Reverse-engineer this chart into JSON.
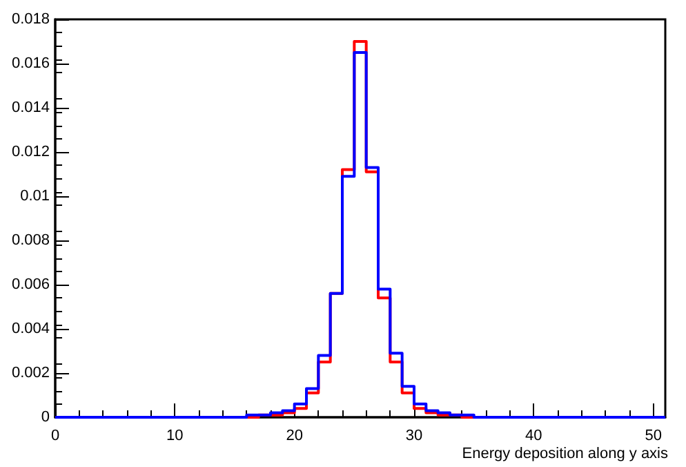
{
  "chart_data": {
    "type": "histogram",
    "xlabel": "Energy deposition along y axis",
    "bins": [
      0,
      1,
      2,
      3,
      4,
      5,
      6,
      7,
      8,
      9,
      10,
      11,
      12,
      13,
      14,
      15,
      16,
      17,
      18,
      19,
      20,
      21,
      22,
      23,
      24,
      25,
      26,
      27,
      28,
      29,
      30,
      31,
      32,
      33,
      34,
      35,
      36,
      37,
      38,
      39,
      40,
      41,
      42,
      43,
      44,
      45,
      46,
      47,
      48,
      49,
      50,
      51
    ],
    "series": [
      {
        "color": "#ff0000",
        "values": [
          0,
          0,
          0,
          0,
          0,
          0,
          0,
          0,
          0,
          0,
          0,
          0,
          0,
          0,
          0,
          0,
          0,
          0.0001,
          0.0001,
          0.0002,
          0.0004,
          0.0011,
          0.0025,
          0.0056,
          0.0112,
          0.017,
          0.0111,
          0.0054,
          0.0025,
          0.0011,
          0.0004,
          0.0002,
          0.0001,
          0.0001,
          0,
          0,
          0,
          0,
          0,
          0,
          0,
          0,
          0,
          0,
          0,
          0,
          0,
          0,
          0,
          0,
          0
        ]
      },
      {
        "color": "#0000ff",
        "values": [
          0,
          0,
          0,
          0,
          0,
          0,
          0,
          0,
          0,
          0,
          0,
          0,
          0,
          0,
          0,
          0,
          0.0001,
          0.0001,
          0.0002,
          0.0003,
          0.0006,
          0.0013,
          0.0028,
          0.0056,
          0.0109,
          0.0165,
          0.0113,
          0.0058,
          0.0029,
          0.0014,
          0.0006,
          0.0003,
          0.0002,
          0.0001,
          0.0001,
          0,
          0,
          0,
          0,
          0,
          0,
          0,
          0,
          0,
          0,
          0,
          0,
          0,
          0,
          0,
          0
        ]
      }
    ],
    "xlim": [
      0,
      51
    ],
    "xticks": [
      0,
      10,
      20,
      30,
      40,
      50
    ],
    "ylim": [
      0,
      0.018
    ],
    "yticks": [
      0,
      0.002,
      0.004,
      0.006,
      0.008,
      0.01,
      0.012,
      0.014,
      0.016,
      0.018
    ],
    "grid": false
  }
}
